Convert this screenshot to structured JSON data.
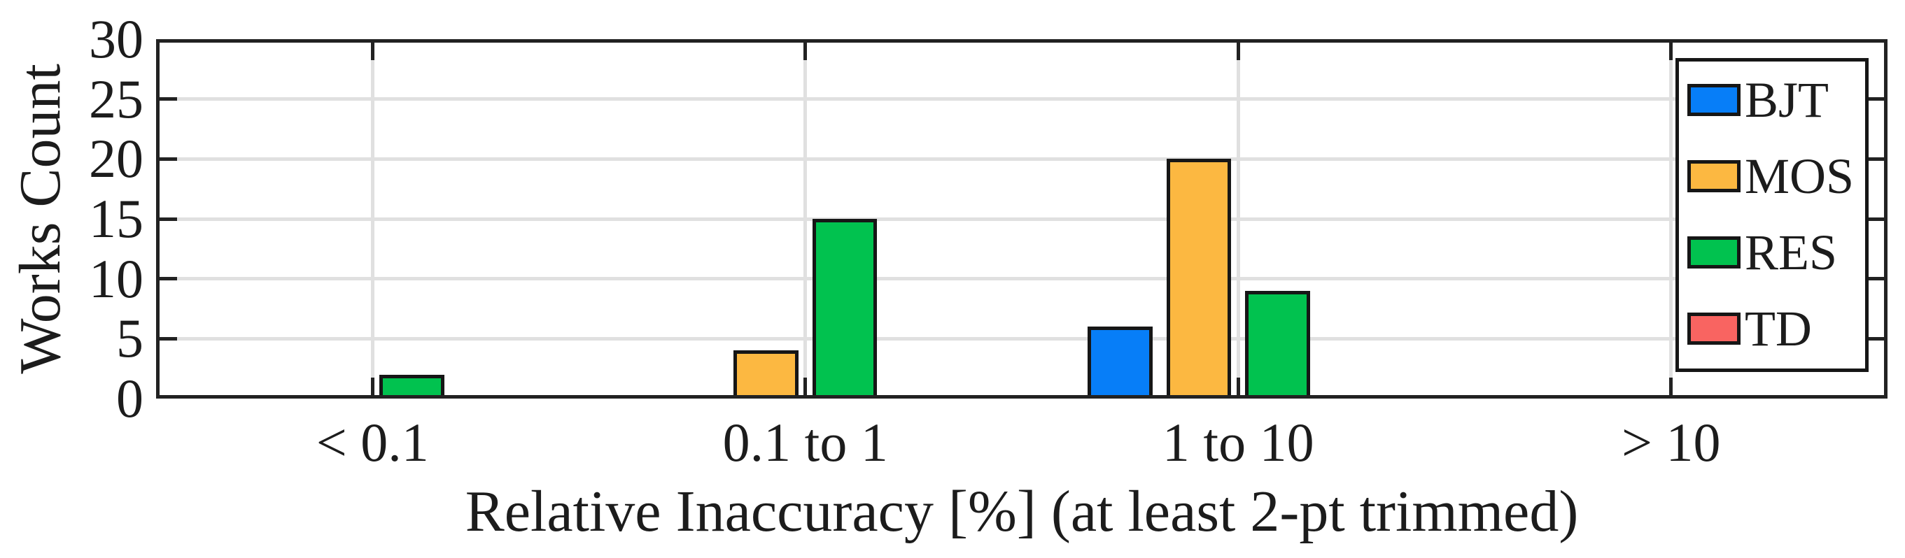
{
  "figure": {
    "background": "#ffffff",
    "axis_color": "#222222",
    "grid_color": "#e0e0e0",
    "bar_edge_color": "#161616",
    "text_color": "#1c1c1c"
  },
  "chart_data": {
    "type": "bar",
    "title": "",
    "xlabel": "Relative Inaccuracy [%] (at least 2-pt trimmed)",
    "ylabel": "Works Count",
    "categories": [
      "< 0.1",
      "0.1 to 1",
      "1 to 10",
      "> 10"
    ],
    "series": [
      {
        "name": "BJT",
        "color": "#077ef8",
        "values": [
          0,
          0,
          6,
          0
        ]
      },
      {
        "name": "MOS",
        "color": "#fcb841",
        "values": [
          0,
          4,
          20,
          0
        ]
      },
      {
        "name": "RES",
        "color": "#01c24f",
        "values": [
          2,
          15,
          9,
          0
        ]
      },
      {
        "name": "TD",
        "color": "#f96461",
        "values": [
          0,
          0,
          0,
          0
        ]
      }
    ],
    "ylim": [
      0,
      30
    ],
    "yticks": [
      0,
      5,
      10,
      15,
      20,
      25,
      30
    ],
    "grid": true,
    "legend_position": "top-right",
    "legend_entries": [
      "BJT",
      "MOS",
      "RES",
      "TD"
    ]
  }
}
